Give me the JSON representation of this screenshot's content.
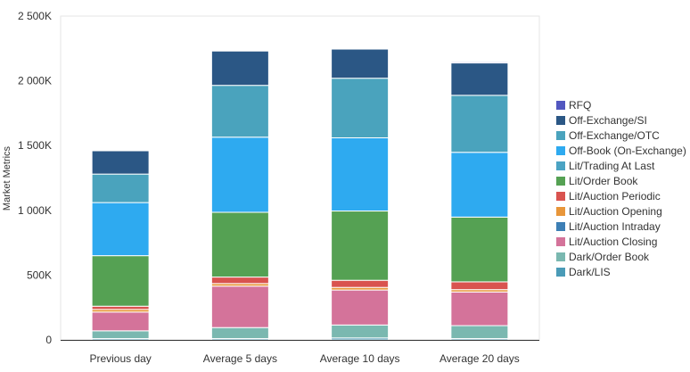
{
  "chart_data": {
    "type": "bar",
    "stacked": true,
    "ylabel": "Market Metrics",
    "ylim": [
      0,
      2500000
    ],
    "yticks": [
      {
        "value": 0,
        "label": "0"
      },
      {
        "value": 500000,
        "label": "500K"
      },
      {
        "value": 1000000,
        "label": "1 000K"
      },
      {
        "value": 1500000,
        "label": "1 500K"
      },
      {
        "value": 2000000,
        "label": "2 000K"
      },
      {
        "value": 2500000,
        "label": "2 500K"
      }
    ],
    "grid": false,
    "legend_position": "right",
    "categories": [
      "Previous day",
      "Average 5 days",
      "Average 10 days",
      "Average 20 days"
    ],
    "series": [
      {
        "name": "Dark/LIS",
        "color": "#4a9bb7",
        "values": [
          10000,
          10000,
          15000,
          10000
        ]
      },
      {
        "name": "Dark/Order Book",
        "color": "#7ab8b0",
        "values": [
          60000,
          85000,
          100000,
          100000
        ]
      },
      {
        "name": "Lit/Auction Closing",
        "color": "#d4739a",
        "values": [
          145000,
          320000,
          270000,
          260000
        ]
      },
      {
        "name": "Lit/Auction Intraday",
        "color": "#3d7fb5",
        "values": [
          0,
          0,
          0,
          0
        ]
      },
      {
        "name": "Lit/Auction Opening",
        "color": "#e8963a",
        "values": [
          20000,
          20000,
          20000,
          18000
        ]
      },
      {
        "name": "Lit/Auction Periodic",
        "color": "#d9534f",
        "values": [
          25000,
          50000,
          55000,
          60000
        ]
      },
      {
        "name": "Lit/Order Book",
        "color": "#55a153",
        "values": [
          390000,
          500000,
          535000,
          500000
        ]
      },
      {
        "name": "Lit/Trading At Last",
        "color": "#4ba3c3",
        "values": [
          0,
          0,
          0,
          0
        ]
      },
      {
        "name": "Off-Book (On-Exchange)",
        "color": "#2eaaf0",
        "values": [
          410000,
          580000,
          565000,
          500000
        ]
      },
      {
        "name": "Off-Exchange/OTC",
        "color": "#4aa3bd",
        "values": [
          220000,
          400000,
          460000,
          440000
        ]
      },
      {
        "name": "Off-Exchange/SI",
        "color": "#2b5785",
        "values": [
          180000,
          265000,
          225000,
          250000
        ]
      },
      {
        "name": "RFQ",
        "color": "#5257c0",
        "values": [
          0,
          0,
          0,
          8000
        ]
      }
    ],
    "legend_order": [
      "RFQ",
      "Off-Exchange/SI",
      "Off-Exchange/OTC",
      "Off-Book (On-Exchange)",
      "Lit/Trading At Last",
      "Lit/Order Book",
      "Lit/Auction Periodic",
      "Lit/Auction Opening",
      "Lit/Auction Intraday",
      "Lit/Auction Closing",
      "Dark/Order Book",
      "Dark/LIS"
    ]
  }
}
